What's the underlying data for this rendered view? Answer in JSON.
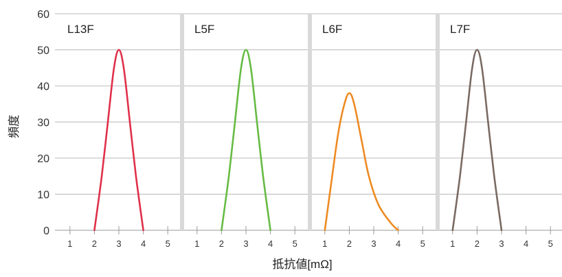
{
  "chart_data": {
    "type": "line",
    "ylabel": "頻度",
    "xlabel": "抵抗値[mΩ]",
    "ylim": [
      0,
      60
    ],
    "yticks": [
      "0",
      "10",
      "20",
      "30",
      "40",
      "50",
      "60"
    ],
    "xlim": [
      0.5,
      5.5
    ],
    "xticks": [
      "1",
      "2",
      "3",
      "4",
      "5"
    ],
    "grid": true,
    "panels": [
      {
        "label": "L13F",
        "color": "#e0304a",
        "points": [
          [
            2,
            0
          ],
          [
            2.3,
            15
          ],
          [
            2.55,
            30
          ],
          [
            2.8,
            45
          ],
          [
            3,
            50
          ],
          [
            3.2,
            45
          ],
          [
            3.45,
            30
          ],
          [
            3.7,
            15
          ],
          [
            4,
            0
          ]
        ]
      },
      {
        "label": "L5F",
        "color": "#66bb44",
        "points": [
          [
            2,
            0
          ],
          [
            2.3,
            15
          ],
          [
            2.55,
            30
          ],
          [
            2.8,
            45
          ],
          [
            3,
            50
          ],
          [
            3.2,
            45
          ],
          [
            3.45,
            30
          ],
          [
            3.7,
            15
          ],
          [
            4,
            0
          ]
        ]
      },
      {
        "label": "L6F",
        "color": "#ee8a22",
        "points": [
          [
            1,
            0
          ],
          [
            1.3,
            15
          ],
          [
            1.55,
            27
          ],
          [
            1.8,
            35
          ],
          [
            2,
            38
          ],
          [
            2.2,
            35
          ],
          [
            2.5,
            25
          ],
          [
            2.8,
            15
          ],
          [
            3.2,
            7
          ],
          [
            3.7,
            2
          ],
          [
            4,
            0
          ]
        ]
      },
      {
        "label": "L7F",
        "color": "#7a6a62",
        "points": [
          [
            1,
            0
          ],
          [
            1.3,
            15
          ],
          [
            1.55,
            30
          ],
          [
            1.8,
            45
          ],
          [
            2,
            50
          ],
          [
            2.2,
            45
          ],
          [
            2.45,
            30
          ],
          [
            2.7,
            15
          ],
          [
            3,
            0
          ]
        ]
      }
    ]
  }
}
